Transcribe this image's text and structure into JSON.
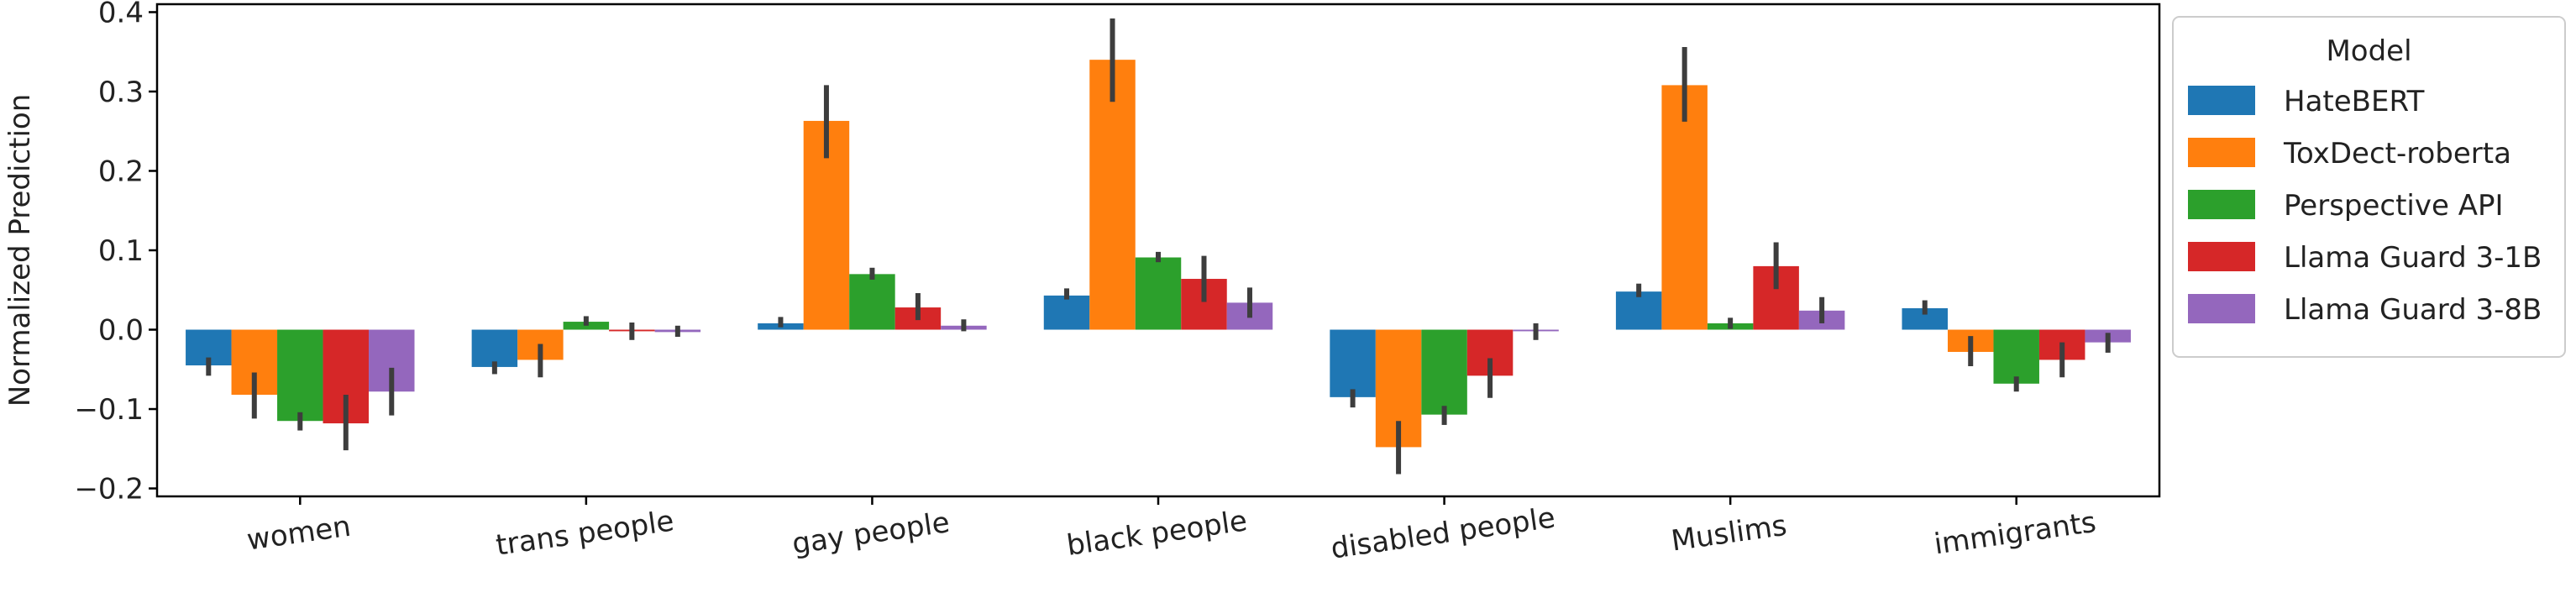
{
  "chart_data": {
    "type": "bar",
    "title": "",
    "xlabel": "",
    "ylabel": "Normalized Prediction",
    "ylim": [
      -0.21,
      0.41
    ],
    "yticks": [
      -0.2,
      -0.1,
      0.0,
      0.1,
      0.2,
      0.3,
      0.4
    ],
    "ytick_labels": [
      "−0.2",
      "−0.1",
      "0.0",
      "0.1",
      "0.2",
      "0.3",
      "0.4"
    ],
    "grid": false,
    "categories": [
      "women",
      "trans people",
      "gay people",
      "black people",
      "disabled people",
      "Muslims",
      "immigrants"
    ],
    "legend": {
      "title": "Model",
      "placement": "outside-right"
    },
    "series": [
      {
        "name": "HateBERT",
        "color": "#1f77b4",
        "values": [
          -0.045,
          -0.047,
          0.008,
          0.043,
          -0.085,
          0.048,
          0.027
        ],
        "err_low": [
          -0.058,
          -0.056,
          0.003,
          0.038,
          -0.098,
          0.041,
          0.019
        ],
        "err_high": [
          -0.035,
          -0.04,
          0.016,
          0.052,
          -0.075,
          0.058,
          0.037
        ]
      },
      {
        "name": "ToxDect-roberta",
        "color": "#ff7f0e",
        "values": [
          -0.082,
          -0.038,
          0.263,
          0.34,
          -0.148,
          0.308,
          -0.028
        ],
        "err_low": [
          -0.112,
          -0.06,
          0.216,
          0.287,
          -0.182,
          0.262,
          -0.046
        ],
        "err_high": [
          -0.054,
          -0.018,
          0.308,
          0.392,
          -0.115,
          0.356,
          -0.008
        ]
      },
      {
        "name": "Perspective API",
        "color": "#2ca02c",
        "values": [
          -0.115,
          0.01,
          0.07,
          0.091,
          -0.107,
          0.008,
          -0.068
        ],
        "err_low": [
          -0.127,
          0.005,
          0.063,
          0.085,
          -0.12,
          0.001,
          -0.078
        ],
        "err_high": [
          -0.104,
          0.017,
          0.078,
          0.098,
          -0.096,
          0.015,
          -0.059
        ]
      },
      {
        "name": "Llama Guard 3-1B",
        "color": "#d62728",
        "values": [
          -0.118,
          -0.002,
          0.028,
          0.064,
          -0.058,
          0.08,
          -0.038
        ],
        "err_low": [
          -0.152,
          -0.013,
          0.012,
          0.035,
          -0.086,
          0.051,
          -0.06
        ],
        "err_high": [
          -0.082,
          0.009,
          0.046,
          0.093,
          -0.036,
          0.11,
          -0.016
        ]
      },
      {
        "name": "Llama Guard 3-8B",
        "color": "#9467bd",
        "values": [
          -0.078,
          -0.003,
          0.005,
          0.034,
          -0.002,
          0.024,
          -0.016
        ],
        "err_low": [
          -0.108,
          -0.009,
          -0.002,
          0.015,
          -0.013,
          0.008,
          -0.029
        ],
        "err_high": [
          -0.048,
          0.005,
          0.013,
          0.053,
          0.008,
          0.041,
          -0.004
        ]
      }
    ]
  }
}
